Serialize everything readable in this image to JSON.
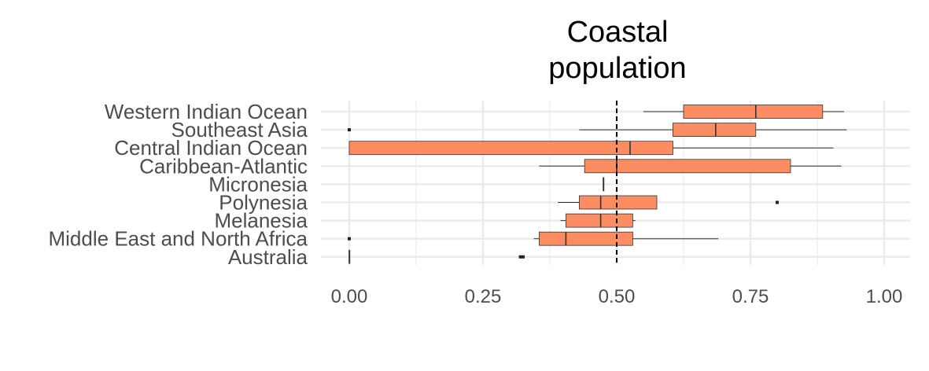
{
  "chart_data": {
    "type": "boxplot",
    "orientation": "horizontal",
    "title_lines": [
      "Coastal",
      "population"
    ],
    "xlabel": "",
    "ylabel": "",
    "xlim": [
      0,
      1
    ],
    "x_ticks": [
      0.0,
      0.25,
      0.5,
      0.75,
      1.0
    ],
    "x_tick_labels": [
      "0.00",
      "0.25",
      "0.50",
      "0.75",
      "1.00"
    ],
    "reference_line": {
      "x": 0.5,
      "style": "dashed"
    },
    "grid": true,
    "box_color": "#fc8d62",
    "categories": [
      {
        "name": "Western Indian Ocean",
        "whisker_low": 0.55,
        "q1": 0.625,
        "median": 0.76,
        "q3": 0.885,
        "whisker_high": 0.925,
        "outliers": []
      },
      {
        "name": "Southeast Asia",
        "whisker_low": 0.43,
        "q1": 0.605,
        "median": 0.685,
        "q3": 0.76,
        "whisker_high": 0.93,
        "outliers": [
          0.0
        ]
      },
      {
        "name": "Central Indian Ocean",
        "whisker_low": 0.0,
        "q1": 0.0,
        "median": 0.525,
        "q3": 0.605,
        "whisker_high": 0.905,
        "outliers": []
      },
      {
        "name": "Caribbean-Atlantic",
        "whisker_low": 0.355,
        "q1": 0.44,
        "median": 0.5,
        "q3": 0.825,
        "whisker_high": 0.92,
        "outliers": []
      },
      {
        "name": "Micronesia",
        "whisker_low": 0.475,
        "q1": 0.475,
        "median": 0.475,
        "q3": 0.475,
        "whisker_high": 0.475,
        "outliers": []
      },
      {
        "name": "Polynesia",
        "whisker_low": 0.39,
        "q1": 0.43,
        "median": 0.47,
        "q3": 0.575,
        "whisker_high": 0.575,
        "outliers": [
          0.8
        ]
      },
      {
        "name": "Melanesia",
        "whisker_low": 0.395,
        "q1": 0.405,
        "median": 0.47,
        "q3": 0.53,
        "whisker_high": 0.535,
        "outliers": []
      },
      {
        "name": "Middle East and North Africa",
        "whisker_low": 0.345,
        "q1": 0.355,
        "median": 0.405,
        "q3": 0.53,
        "whisker_high": 0.69,
        "outliers": [
          0.0
        ]
      },
      {
        "name": "Australia",
        "whisker_low": 0.0,
        "q1": 0.0,
        "median": 0.0,
        "q3": 0.0,
        "whisker_high": 0.0,
        "outliers": [
          0.32,
          0.325
        ]
      }
    ]
  }
}
